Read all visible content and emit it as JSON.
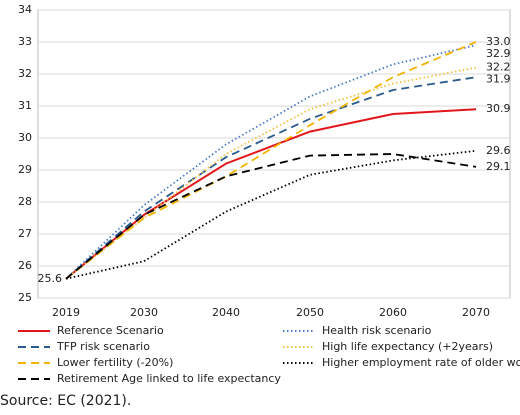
{
  "chart_data": {
    "type": "line",
    "categories": [
      "2019",
      "2030",
      "2040",
      "2050",
      "2060",
      "2070"
    ],
    "ylim": [
      25,
      34
    ],
    "yticks": [
      25,
      26,
      27,
      28,
      29,
      30,
      31,
      32,
      33,
      34
    ],
    "grid": true,
    "series": [
      {
        "name": "Reference Scenario",
        "color": "#e3161c",
        "style": "solid",
        "values": [
          25.6,
          27.6,
          29.2,
          30.2,
          30.75,
          30.9
        ],
        "value_labels": [
          "25.6",
          null,
          null,
          null,
          null,
          "30.9"
        ]
      },
      {
        "name": "Health risk scenario",
        "color": "#4a7bc8",
        "style": "dotted",
        "values": [
          25.6,
          27.9,
          29.8,
          31.3,
          32.3,
          32.9
        ],
        "value_labels": [
          null,
          null,
          null,
          null,
          null,
          "32.9"
        ]
      },
      {
        "name": "TFP risk scenario",
        "color": "#2a5a8c",
        "style": "dashed",
        "values": [
          25.6,
          27.7,
          29.4,
          30.6,
          31.5,
          31.9
        ],
        "value_labels": [
          null,
          null,
          null,
          null,
          null,
          "31.9"
        ]
      },
      {
        "name": "High life expectancy (+2years)",
        "color": "#f5c040",
        "style": "dotted",
        "values": [
          25.6,
          27.5,
          29.5,
          30.9,
          31.7,
          32.2
        ],
        "value_labels": [
          null,
          null,
          null,
          null,
          null,
          "32.2"
        ]
      },
      {
        "name": "Lower fertility (-20%)",
        "color": "#f2b400",
        "style": "dashed",
        "values": [
          25.6,
          27.5,
          28.8,
          30.4,
          31.9,
          33.0
        ],
        "value_labels": [
          null,
          null,
          null,
          null,
          null,
          "33.0"
        ]
      },
      {
        "name": "Higher employment rate of older workers",
        "color": "#000000",
        "style": "dotted",
        "values": [
          25.6,
          26.15,
          27.7,
          28.85,
          29.3,
          29.6
        ],
        "value_labels": [
          null,
          null,
          null,
          null,
          null,
          "29.6"
        ]
      },
      {
        "name": "Retirement Age linked to life expectancy",
        "color": "#000000",
        "style": "dashed",
        "values": [
          25.6,
          27.6,
          28.8,
          29.45,
          29.5,
          29.1
        ],
        "value_labels": [
          null,
          null,
          null,
          null,
          null,
          "29.1"
        ]
      }
    ],
    "source": "Source: EC (2021)."
  }
}
